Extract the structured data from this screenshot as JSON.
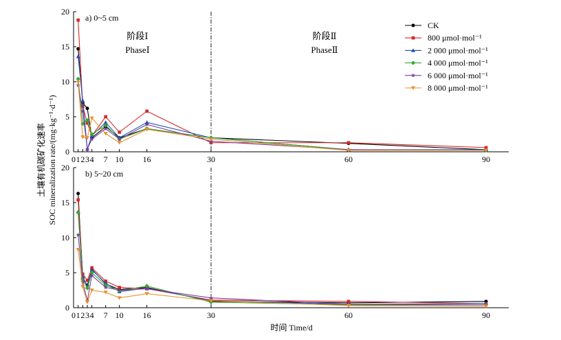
{
  "chart_data": {
    "type": "line",
    "x": [
      1,
      2,
      3,
      4,
      7,
      10,
      16,
      30,
      60,
      90
    ],
    "xticks": [
      0,
      1,
      2,
      3,
      4,
      7,
      10,
      16,
      30,
      60,
      90
    ],
    "xlabel": "时间 Time/d",
    "ylabel_line1": "土壤有机碳矿化速率",
    "ylabel_line2": "SOC mineralization rate/(mg·kg⁻¹·d⁻¹)",
    "divider_x": 30,
    "phase1_cn": "阶段Ⅰ",
    "phase1_en": "PhaseⅠ",
    "phase2_cn": "阶段Ⅱ",
    "phase2_en": "PhaseⅡ",
    "legend": [
      {
        "name": "CK",
        "color": "#000000",
        "marker": "circle"
      },
      {
        "name": "800 μmol·mol⁻¹",
        "color": "#d62728",
        "marker": "square"
      },
      {
        "name": "2 000 μmol·mol⁻¹",
        "color": "#1f4fb4",
        "marker": "triangle-up"
      },
      {
        "name": "4 000 μmol·mol⁻¹",
        "color": "#3aa635",
        "marker": "diamond"
      },
      {
        "name": "6 000 μmol·mol⁻¹",
        "color": "#7b3fa0",
        "marker": "star"
      },
      {
        "name": "8 000 μmol·mol⁻¹",
        "color": "#e8912b",
        "marker": "triangle-down"
      }
    ],
    "panels": [
      {
        "label": "a) 0~5 cm",
        "ylim": [
          0,
          20
        ],
        "yticks": [
          0,
          5,
          10,
          15,
          20
        ],
        "series": [
          {
            "values": [
              14.7,
              7.0,
              6.2,
              2.0,
              3.6,
              2.0,
              3.3,
              2.0,
              1.2,
              0.3
            ]
          },
          {
            "values": [
              18.8,
              6.5,
              4.1,
              2.3,
              5.0,
              2.8,
              5.8,
              1.3,
              1.3,
              0.6
            ]
          },
          {
            "values": [
              13.6,
              7.3,
              0.4,
              2.3,
              4.2,
              2.0,
              4.2,
              2.0,
              0.3,
              0.3
            ]
          },
          {
            "values": [
              10.4,
              4.0,
              4.5,
              2.5,
              3.8,
              1.8,
              3.3,
              2.0,
              0.3,
              0.2
            ]
          },
          {
            "values": [
              9.5,
              5.8,
              0.4,
              1.8,
              3.3,
              1.8,
              3.9,
              1.5,
              0.3,
              0.2
            ]
          },
          {
            "values": [
              9.9,
              2.1,
              2.0,
              4.8,
              2.6,
              1.3,
              3.2,
              1.8,
              0.2,
              0.2
            ]
          }
        ]
      },
      {
        "label": "b) 5~20 cm",
        "ylim": [
          0,
          20
        ],
        "yticks": [
          0,
          5,
          10,
          15,
          20
        ],
        "series": [
          {
            "values": [
              16.3,
              4.2,
              3.2,
              5.5,
              3.4,
              2.6,
              2.9,
              0.9,
              0.7,
              0.9
            ]
          },
          {
            "values": [
              15.4,
              4.8,
              3.9,
              5.7,
              3.8,
              2.9,
              2.7,
              1.1,
              0.9,
              0.6
            ]
          },
          {
            "values": [
              13.7,
              4.5,
              3.0,
              5.4,
              3.5,
              2.3,
              2.8,
              1.0,
              0.5,
              0.6
            ]
          },
          {
            "values": [
              13.6,
              4.0,
              2.8,
              5.0,
              3.2,
              2.4,
              3.1,
              0.8,
              0.4,
              0.4
            ]
          },
          {
            "values": [
              10.4,
              3.7,
              1.0,
              4.6,
              2.9,
              2.5,
              2.7,
              1.4,
              0.5,
              0.4
            ]
          },
          {
            "values": [
              8.3,
              3.0,
              0.8,
              2.5,
              2.2,
              1.4,
              2.0,
              1.0,
              0.3,
              0.2
            ]
          }
        ]
      }
    ]
  }
}
